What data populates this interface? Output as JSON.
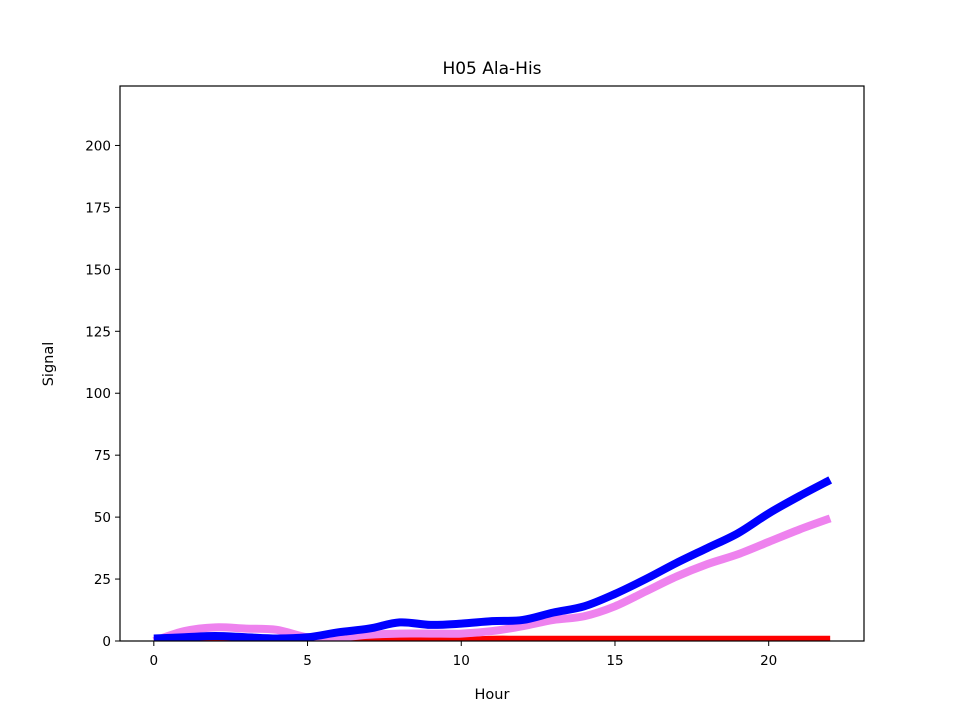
{
  "chart_data": {
    "type": "line",
    "title": "H05 Ala-His",
    "xlabel": "Hour",
    "ylabel": "Signal",
    "xlim": [
      -1.1,
      23.1
    ],
    "ylim": [
      0,
      224
    ],
    "xticks": [
      0,
      5,
      10,
      15,
      20
    ],
    "yticks": [
      0,
      25,
      50,
      75,
      100,
      125,
      150,
      175,
      200
    ],
    "grid": false,
    "legend": "none",
    "series": [
      {
        "color": "#ff0000",
        "x": [
          0,
          1,
          2,
          3,
          4,
          5,
          6,
          7,
          8,
          9,
          10,
          11,
          12,
          13,
          14,
          15,
          16,
          17,
          18,
          19,
          20,
          21,
          22
        ],
        "values": [
          0,
          0,
          0,
          0,
          0,
          0,
          0,
          0,
          0,
          0,
          0,
          0.5,
          0.5,
          0.5,
          0.5,
          0.5,
          0.5,
          0.5,
          0.5,
          0.5,
          0.5,
          0.5,
          0.5
        ]
      },
      {
        "color": "#ee82ee",
        "x": [
          0,
          1,
          2,
          3,
          4,
          5,
          6,
          7,
          8,
          9,
          10,
          11,
          12,
          13,
          14,
          15,
          16,
          17,
          18,
          19,
          20,
          21,
          22
        ],
        "values": [
          0,
          4,
          5.5,
          5,
          4.5,
          1.5,
          1.5,
          2.5,
          3,
          3,
          3,
          4,
          6,
          8.5,
          10,
          14,
          20,
          26,
          31,
          35,
          40,
          45,
          49.5
        ]
      },
      {
        "color": "#0000ff",
        "x": [
          0,
          1,
          2,
          3,
          4,
          5,
          6,
          7,
          8,
          9,
          10,
          11,
          12,
          13,
          14,
          15,
          16,
          17,
          18,
          19,
          20,
          21,
          22
        ],
        "values": [
          1,
          1.5,
          2,
          1.5,
          1,
          1.5,
          3.5,
          5,
          7.5,
          6.5,
          7,
          8,
          8.5,
          11.5,
          14,
          19,
          25,
          31.5,
          37.5,
          43.5,
          51.5,
          58.5,
          65
        ]
      }
    ]
  }
}
